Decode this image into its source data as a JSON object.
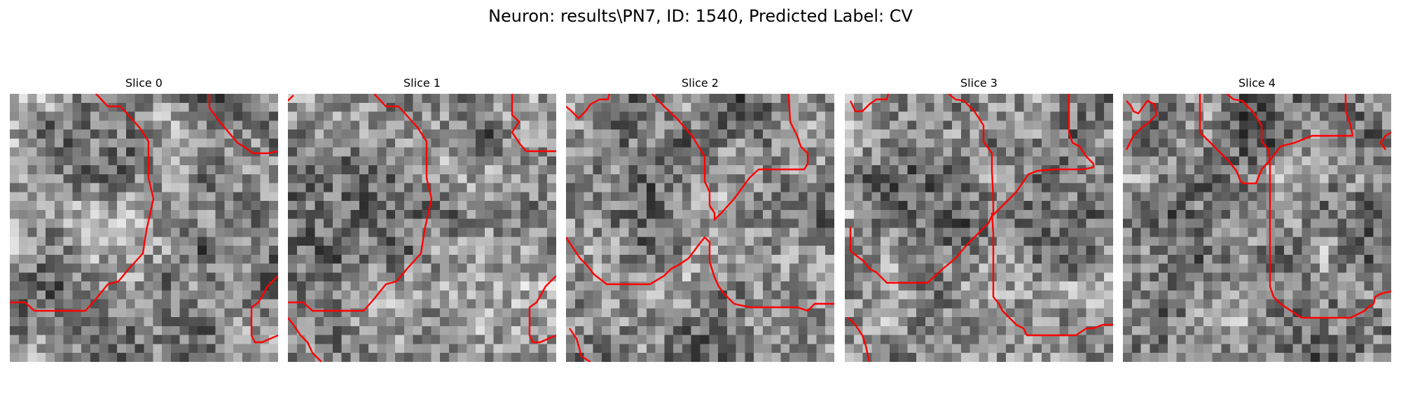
{
  "figure": {
    "title": "Neuron: results\\PN7, ID: 1540, Predicted Label: CV",
    "contour_color": "#ff0000",
    "slices": [
      {
        "label": "Slice 0"
      },
      {
        "label": "Slice 1"
      },
      {
        "label": "Slice 2"
      },
      {
        "label": "Slice 3"
      },
      {
        "label": "Slice 4"
      }
    ]
  }
}
